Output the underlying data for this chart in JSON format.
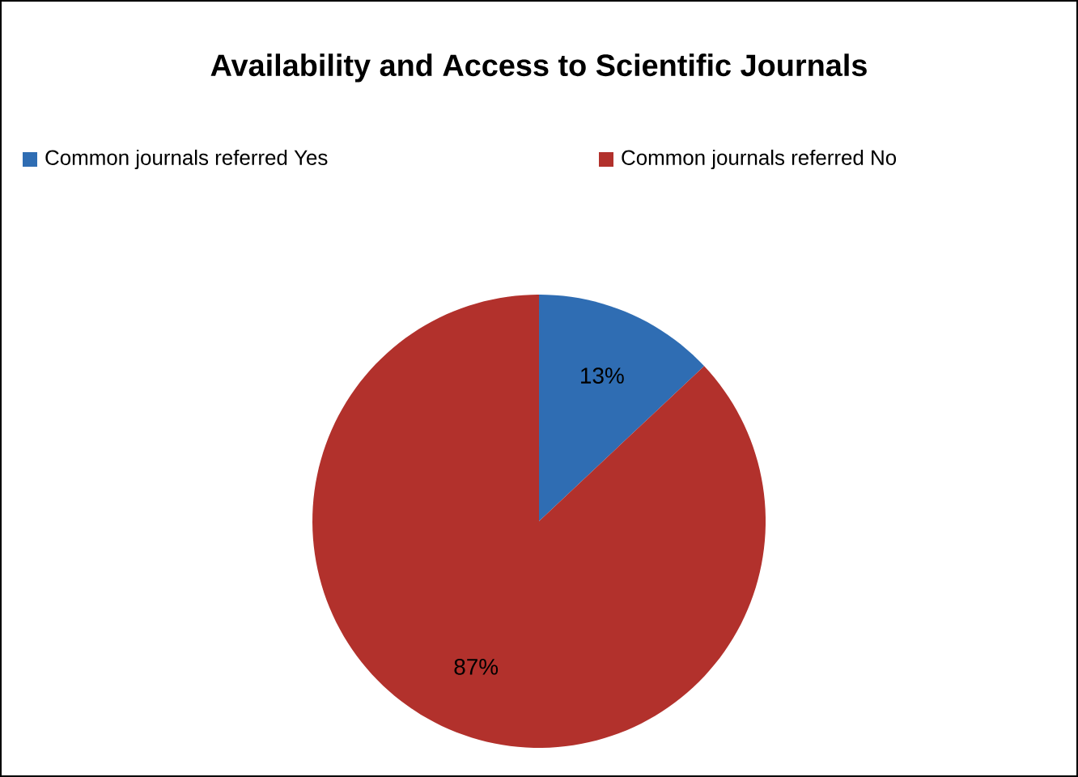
{
  "chart_data": {
    "type": "pie",
    "title": "Availability and Access to Scientific Journals",
    "categories": [
      "Common journals referred  Yes",
      "Common journals referred  No"
    ],
    "values": [
      13,
      87
    ],
    "colors": [
      "#2f6db3",
      "#b2312c"
    ],
    "value_labels": [
      "13%",
      "87%"
    ],
    "legend": "top"
  }
}
